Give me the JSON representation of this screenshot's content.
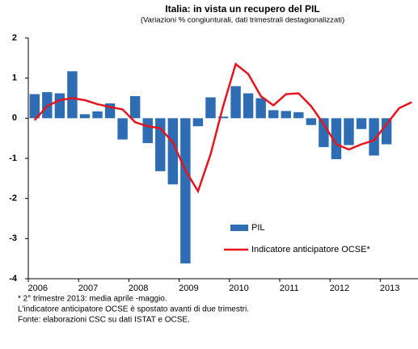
{
  "chart_data": {
    "type": "bar_line",
    "title": "Italia: in vista un recupero del PIL",
    "subtitle": "(Variazioni % congiunturali, dati trimestrali destagionalizzati)",
    "categories": [
      "2006",
      null,
      null,
      null,
      "2007",
      null,
      null,
      null,
      "2008",
      null,
      null,
      null,
      "2009",
      null,
      null,
      null,
      "2010",
      null,
      null,
      null,
      "2011",
      null,
      null,
      null,
      "2012",
      null,
      null,
      null,
      "2013",
      null,
      null
    ],
    "series": [
      {
        "name": "PIL",
        "color": "#2e6db4",
        "kind": "bar",
        "values": [
          0.6,
          0.65,
          0.62,
          1.17,
          0.1,
          0.17,
          0.37,
          -0.53,
          0.55,
          -0.62,
          -1.32,
          -1.65,
          -3.62,
          -0.2,
          0.52,
          0.04,
          0.8,
          0.62,
          0.5,
          0.2,
          0.18,
          0.15,
          -0.17,
          -0.72,
          -1.02,
          -0.67,
          -0.27,
          -0.93,
          -0.65,
          null,
          null
        ]
      },
      {
        "name": "Indicatore anticipatore OCSE*",
        "color": "#e8141c",
        "kind": "line",
        "values": [
          -0.05,
          0.3,
          0.45,
          0.5,
          0.45,
          0.35,
          0.28,
          0.22,
          -0.1,
          -0.2,
          -0.25,
          -0.6,
          -1.3,
          -1.82,
          -0.9,
          0.3,
          1.35,
          1.1,
          0.55,
          0.32,
          0.6,
          0.62,
          0.3,
          -0.15,
          -0.65,
          -0.78,
          -0.65,
          -0.55,
          -0.15,
          0.25,
          0.4
        ]
      }
    ],
    "ylim": [
      -4,
      2
    ],
    "yticks": [
      -4,
      -3,
      -2,
      -1,
      0,
      1,
      2
    ],
    "notes": [
      "* 2° trimestre 2013: media aprile -maggio.",
      "L'indicatore anticipatore OCSE è spostato avanti di due trimestri.",
      "Fonte: elaborazioni CSC su dati ISTAT e OCSE."
    ]
  }
}
